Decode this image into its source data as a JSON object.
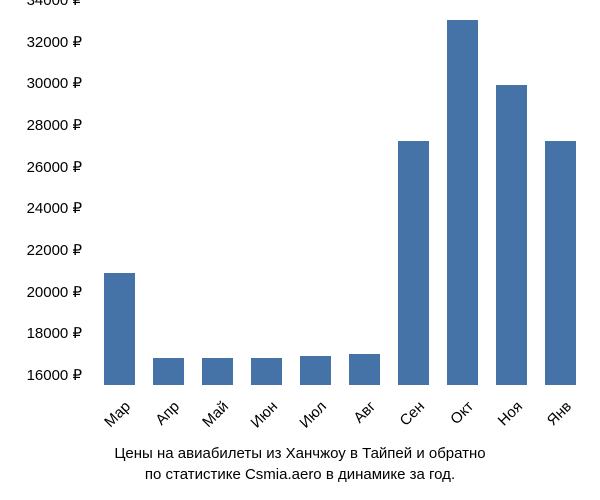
{
  "chart": {
    "type": "bar",
    "categories": [
      "Мар",
      "Апр",
      "Май",
      "Июн",
      "Июл",
      "Авг",
      "Сен",
      "Окт",
      "Ноя",
      "Янв"
    ],
    "values": [
      21400,
      17300,
      17300,
      17300,
      17400,
      17500,
      27700,
      33500,
      30400,
      27700
    ],
    "bar_color": "#4573a7",
    "ylim_min": 16000,
    "ylim_max": 34000,
    "ytick_step": 2000,
    "y_suffix": " ₽",
    "bar_width_ratio": 0.65,
    "background_color": "#ffffff",
    "text_color": "#000000",
    "tick_fontsize": 15,
    "caption_fontsize": 15,
    "x_label_rotation": -45
  },
  "caption": {
    "line1": "Цены на авиабилеты из Ханчжоу в Тайпей и обратно",
    "line2": "по статистике Csmia.aero в динамике за год."
  }
}
